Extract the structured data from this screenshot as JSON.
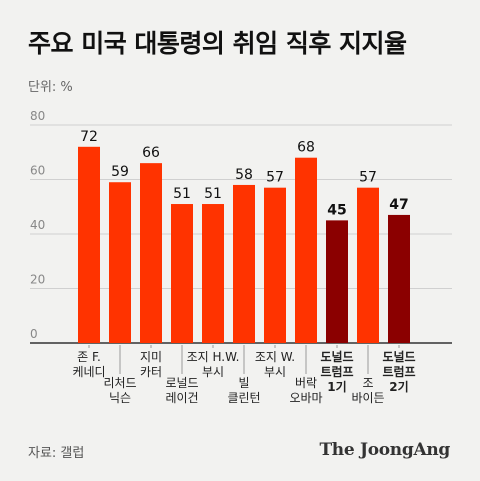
{
  "title": "주요 미국 대통령의 취임 직후 지지율",
  "unit_label": "단위: %",
  "source": "자료: 갤럽",
  "logo": "The JoongAng",
  "colors": {
    "bar": "#ff3300",
    "highlight": "#8b0000",
    "grid": "#d0d0d0",
    "axis": "#333333",
    "tick": "#888888"
  },
  "chart_data": {
    "type": "bar",
    "title": "주요 미국 대통령의 취임 직후 지지율",
    "xlabel": "",
    "ylabel": "",
    "ylim": [
      0,
      80
    ],
    "yticks": [
      0,
      20,
      40,
      60,
      80
    ],
    "grid": true,
    "categories": [
      [
        "존 F.",
        "케네디"
      ],
      [
        "리처드",
        "닉슨"
      ],
      [
        "지미",
        "카터"
      ],
      [
        "로널드",
        "레이건"
      ],
      [
        "조지 H.W.",
        "부시"
      ],
      [
        "빌",
        "클린턴"
      ],
      [
        "조지 W.",
        "부시"
      ],
      [
        "버락",
        "오바마"
      ],
      [
        "도널드",
        "트럼프",
        "1기"
      ],
      [
        "조",
        "바이든"
      ],
      [
        "도널드",
        "트럼프",
        "2기"
      ]
    ],
    "values": [
      72,
      59,
      66,
      51,
      51,
      58,
      57,
      68,
      45,
      57,
      47
    ],
    "highlighted": [
      8,
      10
    ]
  }
}
